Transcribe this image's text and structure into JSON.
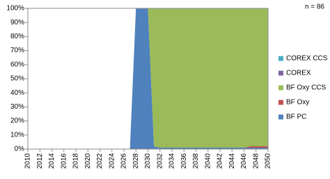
{
  "chart_data": {
    "type": "stacked_area",
    "annotation": "n = 86",
    "x": [
      2010,
      2011,
      2012,
      2013,
      2014,
      2015,
      2016,
      2017,
      2018,
      2019,
      2020,
      2021,
      2022,
      2023,
      2024,
      2025,
      2026,
      2027,
      2028,
      2029,
      2030,
      2031,
      2032,
      2033,
      2034,
      2035,
      2036,
      2037,
      2038,
      2039,
      2040,
      2041,
      2042,
      2043,
      2044,
      2045,
      2046,
      2047,
      2048,
      2049,
      2050
    ],
    "series": [
      {
        "name": "BF PC",
        "color": "#4f81bd",
        "values": [
          0,
          0,
          0,
          0,
          0,
          0,
          0,
          0,
          0,
          0,
          0,
          0,
          0,
          0,
          0,
          0,
          0,
          0,
          100,
          100,
          100,
          2,
          1,
          1,
          1,
          1,
          1,
          1,
          1,
          1,
          1,
          1,
          1,
          1,
          1,
          1,
          1,
          1,
          1,
          1,
          1
        ]
      },
      {
        "name": "BF Oxy",
        "color": "#c0504d",
        "values": [
          0,
          0,
          0,
          0,
          0,
          0,
          0,
          0,
          0,
          0,
          0,
          0,
          0,
          0,
          0,
          0,
          0,
          0,
          0,
          0,
          0,
          0,
          0,
          0,
          0,
          0,
          0,
          0,
          0,
          0,
          0,
          0,
          0,
          0,
          0,
          0,
          0,
          1,
          1,
          1,
          1
        ]
      },
      {
        "name": "BF Oxy CCS",
        "color": "#9bbb59",
        "values": [
          0,
          0,
          0,
          0,
          0,
          0,
          0,
          0,
          0,
          0,
          0,
          0,
          0,
          0,
          0,
          0,
          0,
          0,
          0,
          0,
          0,
          98,
          99,
          99,
          99,
          99,
          99,
          99,
          99,
          99,
          99,
          99,
          99,
          99,
          99,
          99,
          99,
          98,
          98,
          98,
          98
        ]
      },
      {
        "name": "COREX",
        "color": "#8064a2",
        "values": [
          0,
          0,
          0,
          0,
          0,
          0,
          0,
          0,
          0,
          0,
          0,
          0,
          0,
          0,
          0,
          0,
          0,
          0,
          0,
          0,
          0,
          0,
          0,
          0,
          0,
          0,
          0,
          0,
          0,
          0,
          0,
          0,
          0,
          0,
          0,
          0,
          0,
          0,
          0,
          0,
          0
        ]
      },
      {
        "name": "COREX CCS",
        "color": "#4bacc6",
        "values": [
          0,
          0,
          0,
          0,
          0,
          0,
          0,
          0,
          0,
          0,
          0,
          0,
          0,
          0,
          0,
          0,
          0,
          0,
          0,
          0,
          0,
          0,
          0,
          0,
          0,
          0,
          0,
          0,
          0,
          0,
          0,
          0,
          0,
          0,
          0,
          0,
          0,
          0,
          0,
          0,
          0
        ]
      }
    ],
    "xlim": [
      2010,
      2050
    ],
    "xticks": [
      2010,
      2012,
      2014,
      2016,
      2018,
      2020,
      2022,
      2024,
      2026,
      2028,
      2030,
      2032,
      2034,
      2036,
      2038,
      2040,
      2042,
      2044,
      2046,
      2048,
      2050
    ],
    "ylim": [
      0,
      100
    ],
    "yticks": [
      {
        "value": 0,
        "label": "0%"
      },
      {
        "value": 10,
        "label": "10%"
      },
      {
        "value": 20,
        "label": "20%"
      },
      {
        "value": 30,
        "label": "30%"
      },
      {
        "value": 40,
        "label": "40%"
      },
      {
        "value": 50,
        "label": "50%"
      },
      {
        "value": 60,
        "label": "60%"
      },
      {
        "value": 70,
        "label": "70%"
      },
      {
        "value": 80,
        "label": "80%"
      },
      {
        "value": 90,
        "label": "90%"
      },
      {
        "value": 100,
        "label": "100%"
      }
    ],
    "legend": "right"
  }
}
